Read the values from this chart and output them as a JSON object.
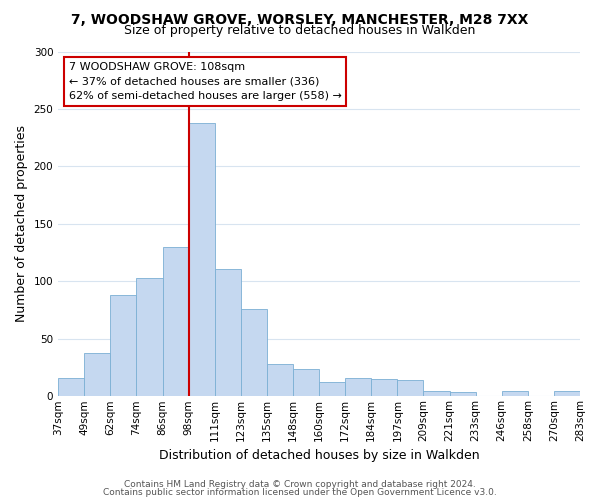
{
  "title": "7, WOODSHAW GROVE, WORSLEY, MANCHESTER, M28 7XX",
  "subtitle": "Size of property relative to detached houses in Walkden",
  "xlabel": "Distribution of detached houses by size in Walkden",
  "ylabel": "Number of detached properties",
  "bin_labels": [
    "37sqm",
    "49sqm",
    "62sqm",
    "74sqm",
    "86sqm",
    "98sqm",
    "111sqm",
    "123sqm",
    "135sqm",
    "148sqm",
    "160sqm",
    "172sqm",
    "184sqm",
    "197sqm",
    "209sqm",
    "221sqm",
    "233sqm",
    "246sqm",
    "258sqm",
    "270sqm",
    "283sqm"
  ],
  "bar_heights": [
    16,
    38,
    88,
    103,
    130,
    238,
    111,
    76,
    28,
    24,
    12,
    16,
    15,
    14,
    5,
    4,
    0,
    5,
    0,
    5
  ],
  "bar_color": "#c5d8f0",
  "bar_edge_color": "#7bafd4",
  "vline_x_index": 5,
  "vline_color": "#cc0000",
  "ylim": [
    0,
    300
  ],
  "yticks": [
    0,
    50,
    100,
    150,
    200,
    250,
    300
  ],
  "annotation_title": "7 WOODSHAW GROVE: 108sqm",
  "annotation_line1": "← 37% of detached houses are smaller (336)",
  "annotation_line2": "62% of semi-detached houses are larger (558) →",
  "annotation_box_color": "#ffffff",
  "annotation_box_edge": "#cc0000",
  "footer1": "Contains HM Land Registry data © Crown copyright and database right 2024.",
  "footer2": "Contains public sector information licensed under the Open Government Licence v3.0.",
  "background_color": "#ffffff",
  "grid_color": "#d8e4f0",
  "title_fontsize": 10,
  "subtitle_fontsize": 9,
  "ylabel_fontsize": 9,
  "xlabel_fontsize": 9,
  "tick_fontsize": 7.5,
  "annotation_fontsize": 8,
  "footer_fontsize": 6.5
}
